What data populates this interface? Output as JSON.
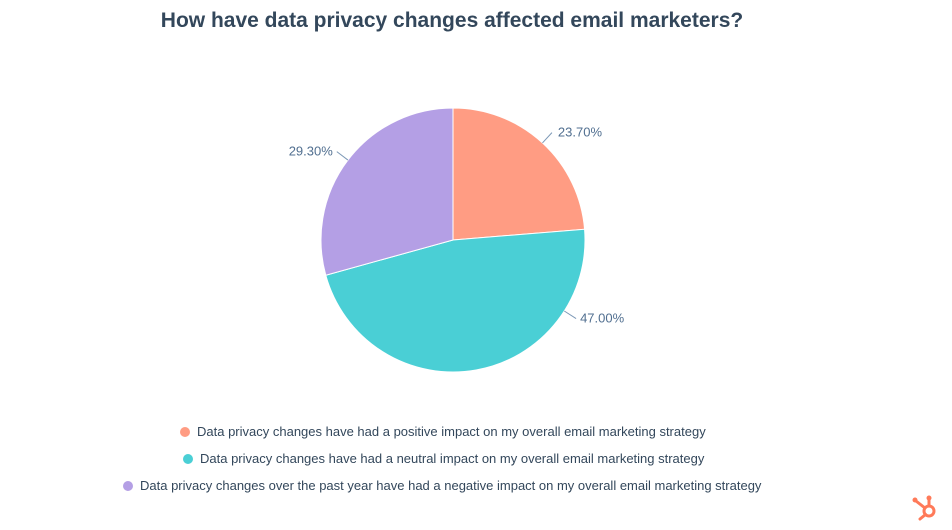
{
  "chart_data": {
    "type": "pie",
    "title": "How have data privacy changes affected email marketers?",
    "slices": [
      {
        "name": "Data privacy changes have had a positive impact on my overall email marketing strategy",
        "value": 23.7,
        "label": "23.70%",
        "color": "#ff9c83"
      },
      {
        "name": "Data privacy changes have had a neutral impact on my overall email marketing strategy",
        "value": 47.0,
        "label": "47.00%",
        "color": "#4acfd5"
      },
      {
        "name": "Data privacy changes over the past year have had a negative impact on my overall email marketing strategy",
        "value": 29.3,
        "label": "29.30%",
        "color": "#b49fe5"
      }
    ],
    "start": "12 o'clock",
    "direction": "clockwise",
    "legend_position": "bottom"
  },
  "logo": {
    "name": "hubspot-logo",
    "color": "#ff7a59"
  }
}
